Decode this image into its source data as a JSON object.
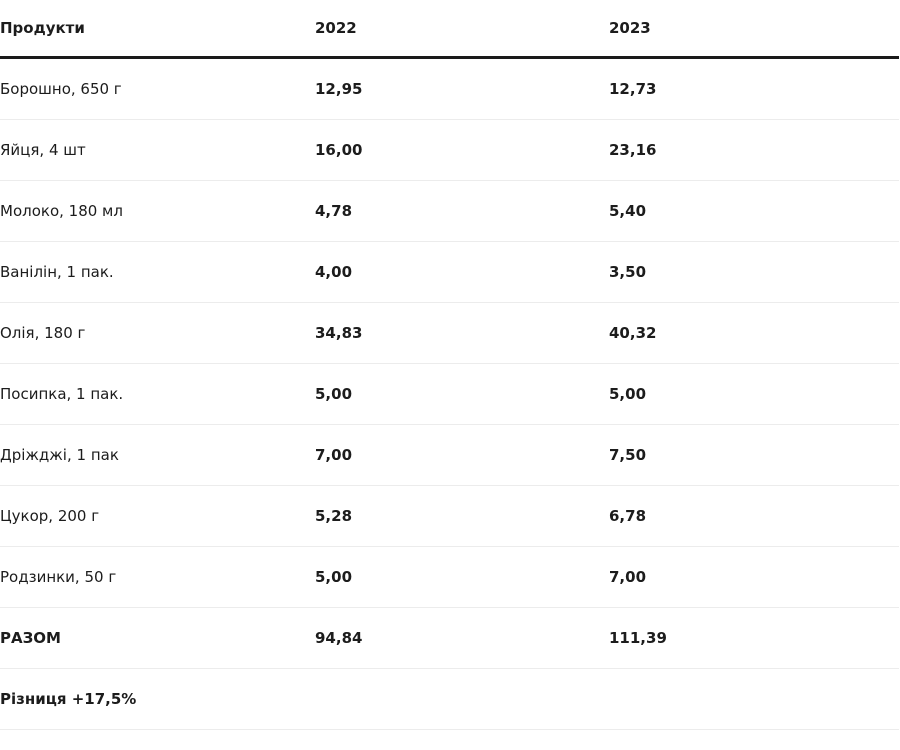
{
  "table": {
    "headers": [
      "Продукти",
      "2022",
      "2023"
    ],
    "rows": [
      [
        "Борошно, 650 г",
        "12,95",
        "12,73"
      ],
      [
        "Яйця, 4 шт",
        "16,00",
        "23,16"
      ],
      [
        "Молоко, 180 мл",
        "4,78",
        "5,40"
      ],
      [
        "Ванілін, 1 пак.",
        "4,00",
        "3,50"
      ],
      [
        "Олія, 180 г",
        "34,83",
        "40,32"
      ],
      [
        "Посипка, 1 пак.",
        "5,00",
        "5,00"
      ],
      [
        "Дріжджі, 1 пак",
        "7,00",
        "7,50"
      ],
      [
        "Цукор, 200 г",
        "5,28",
        "6,78"
      ],
      [
        "Родзинки, 50 г",
        "5,00",
        "7,00"
      ]
    ],
    "total": [
      "РАЗОМ",
      "94,84",
      "111,39"
    ],
    "difference": "Різниця +17,5%"
  }
}
